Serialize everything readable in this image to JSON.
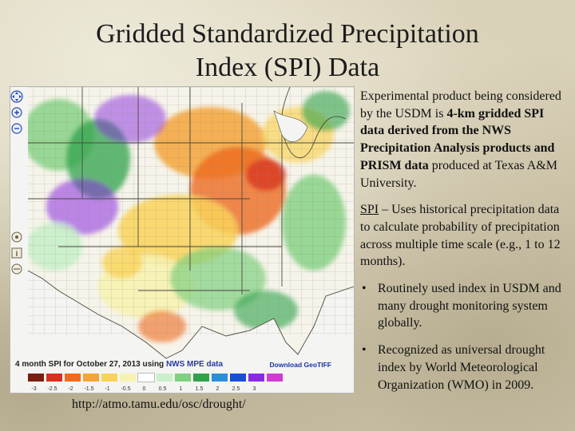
{
  "slide": {
    "title_line1": "Gridded Standardized Precipitation",
    "title_line2": "Index (SPI) Data"
  },
  "map": {
    "caption_prefix": "4 month SPI for October 27, 2013 using ",
    "caption_source": "NWS MPE data",
    "download_label": "Download GeoTIFF",
    "legend": {
      "colors": [
        "#7a1e10",
        "#d7301f",
        "#ef6a1f",
        "#f4a43a",
        "#f9d35a",
        "#f7f2b0",
        "#ffffff",
        "#c9f0c9",
        "#7fd07f",
        "#2fa34a",
        "#2a8fd9",
        "#1b4fd1",
        "#8a2be2",
        "#d23ad2"
      ],
      "ticks": [
        "-3",
        "-2.5",
        "-2",
        "-1.5",
        "-1",
        "-0.5",
        "0",
        "0.5",
        "1",
        "1.5",
        "2",
        "2.5",
        "3"
      ]
    },
    "tool_icons": [
      "pan-icon",
      "zoom-in-icon",
      "zoom-out-icon",
      "globe-icon",
      "info-icon",
      "layers-icon"
    ]
  },
  "url": "http://atmo.tamu.edu/osc/drought/",
  "body": {
    "p1_a": "Experimental product being considered by the USDM is ",
    "p1_bold": "4-km gridded SPI data derived from the NWS Precipitation Analysis products and PRISM data",
    "p1_b": " produced at Texas A&M University.",
    "p2_term": "SPI",
    "p2_rest": " – Uses historical precipitation data to calculate probability of precipitation across multiple time scale (e.g., 1 to 12 months).",
    "bullet_char": "•",
    "bullet1": "Routinely used index in USDM and many drought monitoring system globally.",
    "bullet2": "Recognized as universal drought index by World Meteorological Organization (WMO) in 2009."
  }
}
